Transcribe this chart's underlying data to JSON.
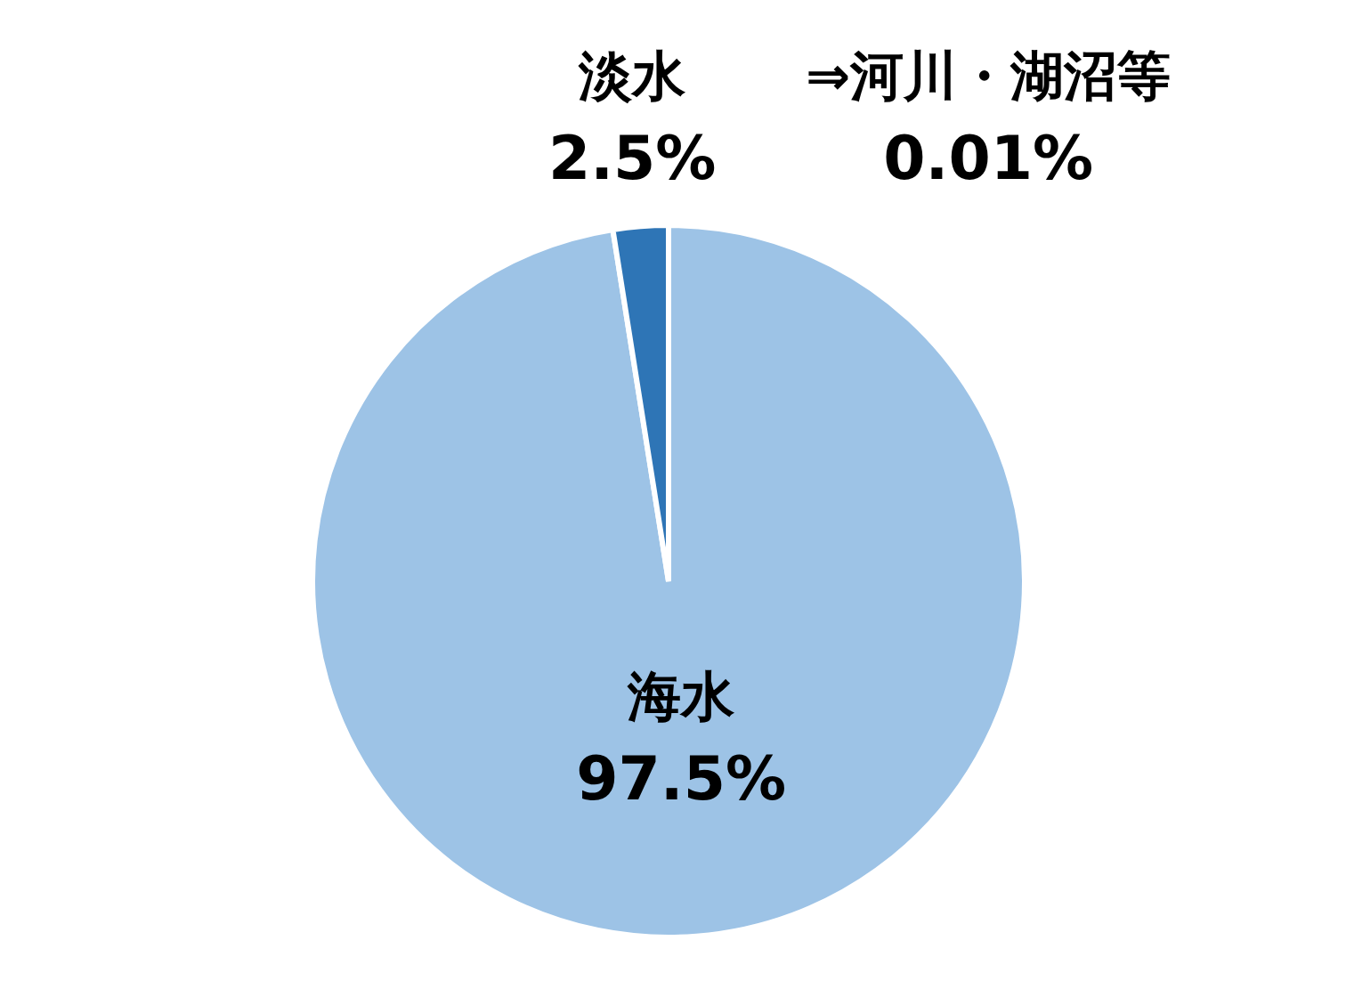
{
  "chart_data": {
    "type": "pie",
    "categories": [
      "海水",
      "淡水"
    ],
    "values": [
      97.5,
      2.5
    ],
    "colors": [
      "#9dc3e6",
      "#2e75b6"
    ],
    "value_labels": [
      "97.5%",
      "2.5%"
    ],
    "annotations": [
      "⇒河川・湖沼等",
      "0.01%"
    ]
  }
}
